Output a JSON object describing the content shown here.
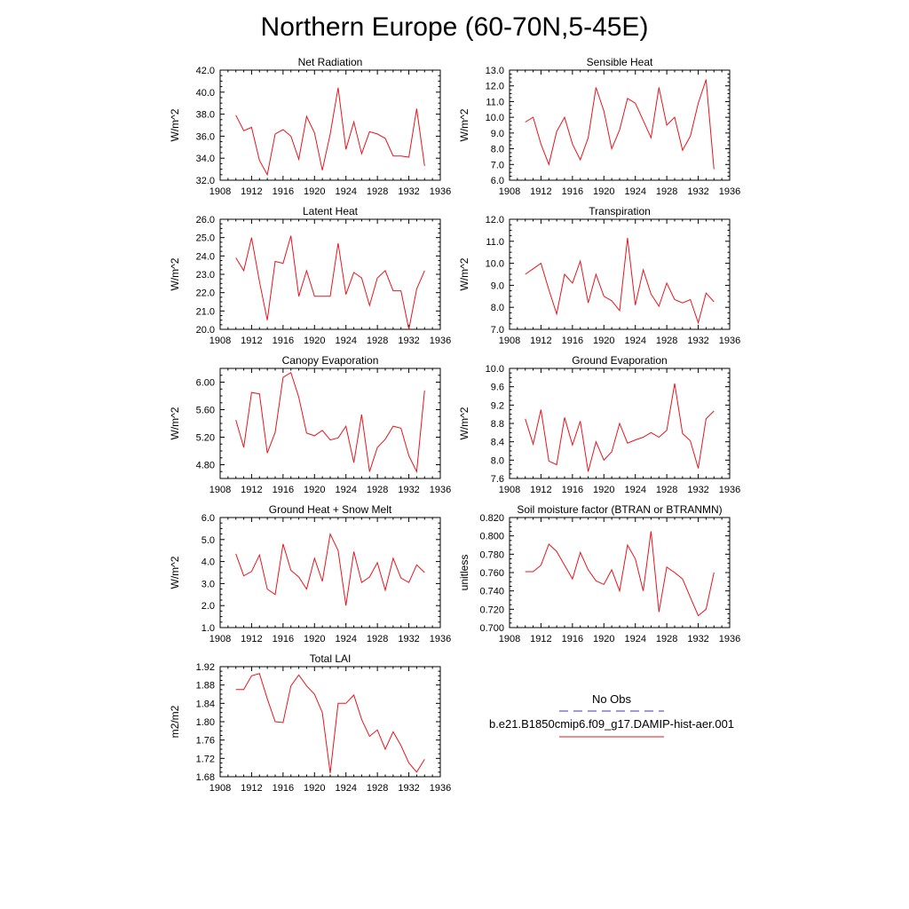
{
  "title": "Northern Europe (60-70N,5-45E)",
  "line_color": "#e8141c",
  "obs_color": "#3a3ab8",
  "legend": {
    "obs_label": "No Obs",
    "model_label": "b.e21.B1850cmip6.f09_g17.DAMIP-hist-aer.001"
  },
  "chart_data": [
    {
      "type": "line",
      "title": "Net Radiation",
      "ylabel": "W/m^2",
      "xlim": [
        1908,
        1936
      ],
      "ylim": [
        32.0,
        42.0
      ],
      "xticks": [
        1908,
        1912,
        1916,
        1920,
        1924,
        1928,
        1932,
        1936
      ],
      "yticks": [
        "32.0",
        "34.0",
        "36.0",
        "38.0",
        "40.0",
        "42.0"
      ],
      "x": [
        1910,
        1911,
        1912,
        1913,
        1914,
        1915,
        1916,
        1917,
        1918,
        1919,
        1920,
        1921,
        1922,
        1923,
        1924,
        1925,
        1926,
        1927,
        1928,
        1929,
        1930,
        1931,
        1932,
        1933,
        1934
      ],
      "values": [
        37.9,
        36.5,
        36.8,
        33.8,
        32.5,
        36.2,
        36.6,
        36.0,
        33.9,
        37.8,
        36.3,
        32.9,
        36.2,
        40.4,
        34.8,
        37.3,
        34.4,
        36.4,
        36.2,
        35.8,
        34.2,
        34.2,
        34.1,
        38.5,
        33.3
      ]
    },
    {
      "type": "line",
      "title": "Sensible Heat",
      "ylabel": "W/m^2",
      "xlim": [
        1908,
        1936
      ],
      "ylim": [
        6.0,
        13.0
      ],
      "xticks": [
        1908,
        1912,
        1916,
        1920,
        1924,
        1928,
        1932,
        1936
      ],
      "yticks": [
        "6.0",
        "7.0",
        "8.0",
        "9.0",
        "10.0",
        "11.0",
        "12.0",
        "13.0"
      ],
      "x": [
        1910,
        1911,
        1912,
        1913,
        1914,
        1915,
        1916,
        1917,
        1918,
        1919,
        1920,
        1921,
        1922,
        1923,
        1924,
        1925,
        1926,
        1927,
        1928,
        1929,
        1930,
        1931,
        1932,
        1933,
        1934
      ],
      "values": [
        9.7,
        10.0,
        8.3,
        7.0,
        9.1,
        10.0,
        8.3,
        7.3,
        8.7,
        11.9,
        10.4,
        8.0,
        9.2,
        11.2,
        10.9,
        9.8,
        8.7,
        11.9,
        9.5,
        10.0,
        7.9,
        8.8,
        10.9,
        12.4,
        6.7
      ]
    },
    {
      "type": "line",
      "title": "Latent Heat",
      "ylabel": "W/m^2",
      "xlim": [
        1908,
        1936
      ],
      "ylim": [
        20.0,
        26.0
      ],
      "xticks": [
        1908,
        1912,
        1916,
        1920,
        1924,
        1928,
        1932,
        1936
      ],
      "yticks": [
        "20.0",
        "21.0",
        "22.0",
        "23.0",
        "24.0",
        "25.0",
        "26.0"
      ],
      "x": [
        1910,
        1911,
        1912,
        1913,
        1914,
        1915,
        1916,
        1917,
        1918,
        1919,
        1920,
        1921,
        1922,
        1923,
        1924,
        1925,
        1926,
        1927,
        1928,
        1929,
        1930,
        1931,
        1932,
        1933,
        1934
      ],
      "values": [
        23.9,
        23.2,
        25.0,
        22.6,
        20.5,
        23.7,
        23.6,
        25.1,
        21.8,
        23.2,
        21.8,
        21.8,
        21.8,
        24.7,
        21.9,
        23.1,
        22.8,
        21.3,
        22.8,
        23.2,
        22.1,
        22.1,
        20.0,
        22.2,
        23.2
      ]
    },
    {
      "type": "line",
      "title": "Transpiration",
      "ylabel": "W/m^2",
      "xlim": [
        1908,
        1936
      ],
      "ylim": [
        7.0,
        12.0
      ],
      "xticks": [
        1908,
        1912,
        1916,
        1920,
        1924,
        1928,
        1932,
        1936
      ],
      "yticks": [
        "7.0",
        "8.0",
        "9.0",
        "10.0",
        "11.0",
        "12.0"
      ],
      "x": [
        1910,
        1911,
        1912,
        1913,
        1914,
        1915,
        1916,
        1917,
        1918,
        1919,
        1920,
        1921,
        1922,
        1923,
        1924,
        1925,
        1926,
        1927,
        1928,
        1929,
        1930,
        1931,
        1932,
        1933,
        1934
      ],
      "values": [
        9.5,
        9.75,
        10.0,
        8.8,
        7.7,
        9.5,
        9.1,
        10.1,
        8.2,
        9.5,
        8.5,
        8.3,
        7.85,
        11.15,
        8.1,
        9.7,
        8.6,
        8.05,
        9.1,
        8.35,
        8.2,
        8.35,
        7.3,
        8.65,
        8.25
      ]
    },
    {
      "type": "line",
      "title": "Canopy Evaporation",
      "ylabel": "W/m^2",
      "xlim": [
        1908,
        1936
      ],
      "ylim": [
        4.6,
        6.2
      ],
      "xticks": [
        1908,
        1912,
        1916,
        1920,
        1924,
        1928,
        1932,
        1936
      ],
      "yticks": [
        "4.80",
        "5.20",
        "5.60",
        "6.00"
      ],
      "ytick_values": [
        4.8,
        5.2,
        5.6,
        6.0
      ],
      "x": [
        1910,
        1911,
        1912,
        1913,
        1914,
        1915,
        1916,
        1917,
        1918,
        1919,
        1920,
        1921,
        1922,
        1923,
        1924,
        1925,
        1926,
        1927,
        1928,
        1929,
        1930,
        1931,
        1932,
        1933,
        1934
      ],
      "values": [
        5.45,
        5.05,
        5.85,
        5.83,
        4.97,
        5.27,
        6.07,
        6.14,
        5.78,
        5.26,
        5.22,
        5.3,
        5.16,
        5.19,
        5.36,
        4.83,
        5.53,
        4.7,
        5.05,
        5.17,
        5.36,
        5.33,
        4.93,
        4.7,
        5.88
      ]
    },
    {
      "type": "line",
      "title": "Ground Evaporation",
      "ylabel": "W/m^2",
      "xlim": [
        1908,
        1936
      ],
      "ylim": [
        7.6,
        10.0
      ],
      "xticks": [
        1908,
        1912,
        1916,
        1920,
        1924,
        1928,
        1932,
        1936
      ],
      "yticks": [
        "7.6",
        "8.0",
        "8.4",
        "8.8",
        "9.2",
        "9.6",
        "10.0"
      ],
      "x": [
        1910,
        1911,
        1912,
        1913,
        1914,
        1915,
        1916,
        1917,
        1918,
        1919,
        1920,
        1921,
        1922,
        1923,
        1924,
        1925,
        1926,
        1927,
        1928,
        1929,
        1930,
        1931,
        1932,
        1933,
        1934
      ],
      "values": [
        8.9,
        8.35,
        9.1,
        7.98,
        7.9,
        8.93,
        8.33,
        8.85,
        7.75,
        8.4,
        8.0,
        8.18,
        8.8,
        8.37,
        8.44,
        8.5,
        8.6,
        8.5,
        8.65,
        9.67,
        8.58,
        8.42,
        7.82,
        8.9,
        9.07
      ]
    },
    {
      "type": "line",
      "title": "Ground Heat + Snow Melt",
      "ylabel": "W/m^2",
      "xlim": [
        1908,
        1936
      ],
      "ylim": [
        1.0,
        6.0
      ],
      "xticks": [
        1908,
        1912,
        1916,
        1920,
        1924,
        1928,
        1932,
        1936
      ],
      "yticks": [
        "1.0",
        "2.0",
        "3.0",
        "4.0",
        "5.0",
        "6.0"
      ],
      "x": [
        1910,
        1911,
        1912,
        1913,
        1914,
        1915,
        1916,
        1917,
        1918,
        1919,
        1920,
        1921,
        1922,
        1923,
        1924,
        1925,
        1926,
        1927,
        1928,
        1929,
        1930,
        1931,
        1932,
        1933,
        1934
      ],
      "values": [
        4.35,
        3.35,
        3.55,
        4.3,
        2.75,
        2.5,
        4.8,
        3.6,
        3.3,
        2.75,
        4.15,
        3.1,
        5.25,
        4.5,
        2.0,
        4.45,
        3.05,
        3.3,
        3.95,
        2.7,
        4.15,
        3.25,
        3.05,
        3.85,
        3.5
      ]
    },
    {
      "type": "line",
      "title": "Soil moisture factor (BTRAN or BTRANMN)",
      "ylabel": "unitless",
      "xlim": [
        1908,
        1936
      ],
      "ylim": [
        0.7,
        0.82
      ],
      "xticks": [
        1908,
        1912,
        1916,
        1920,
        1924,
        1928,
        1932,
        1936
      ],
      "yticks": [
        "0.700",
        "0.720",
        "0.740",
        "0.760",
        "0.780",
        "0.800",
        "0.820"
      ],
      "x": [
        1910,
        1911,
        1912,
        1913,
        1914,
        1915,
        1916,
        1917,
        1918,
        1919,
        1920,
        1921,
        1922,
        1923,
        1924,
        1925,
        1926,
        1927,
        1928,
        1929,
        1930,
        1931,
        1932,
        1933,
        1934
      ],
      "values": [
        0.761,
        0.761,
        0.768,
        0.791,
        0.783,
        0.768,
        0.753,
        0.782,
        0.763,
        0.751,
        0.747,
        0.763,
        0.74,
        0.79,
        0.775,
        0.74,
        0.805,
        0.717,
        0.766,
        0.76,
        0.753,
        0.733,
        0.713,
        0.72,
        0.76
      ]
    },
    {
      "type": "line",
      "title": "Total LAI",
      "ylabel": "m2/m2",
      "xlim": [
        1908,
        1936
      ],
      "ylim": [
        1.68,
        1.92
      ],
      "xticks": [
        1908,
        1912,
        1916,
        1920,
        1924,
        1928,
        1932,
        1936
      ],
      "yticks": [
        "1.68",
        "1.72",
        "1.76",
        "1.80",
        "1.84",
        "1.88",
        "1.92"
      ],
      "x": [
        1910,
        1911,
        1912,
        1913,
        1914,
        1915,
        1916,
        1917,
        1918,
        1919,
        1920,
        1921,
        1922,
        1923,
        1924,
        1925,
        1926,
        1927,
        1928,
        1929,
        1930,
        1931,
        1932,
        1933,
        1934
      ],
      "values": [
        1.87,
        1.87,
        1.9,
        1.905,
        1.85,
        1.8,
        1.798,
        1.878,
        1.902,
        1.878,
        1.86,
        1.82,
        1.688,
        1.84,
        1.84,
        1.858,
        1.805,
        1.768,
        1.782,
        1.74,
        1.778,
        1.748,
        1.71,
        1.69,
        1.718
      ]
    }
  ]
}
